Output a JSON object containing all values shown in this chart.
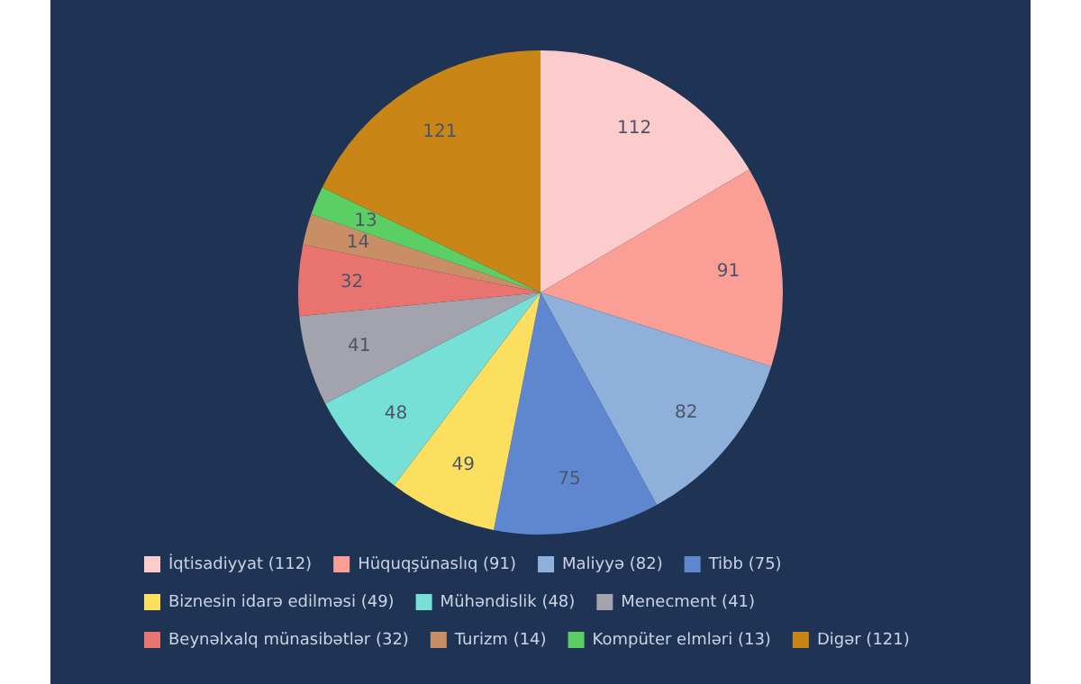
{
  "chart_data": {
    "type": "pie",
    "categories": [
      "İqtisadiyyat (112)",
      "Hüquqşünaslıq (91)",
      "Maliyyə (82)",
      "Tibb (75)",
      "Biznesin idarə edilməsi (49)",
      "Mühəndislik (48)",
      "Menecment (41)",
      "Beynəlxalq münasibətlər (32)",
      "Turizm (14)",
      "Kompüter elmləri (13)",
      "Digər (121)"
    ],
    "values": [
      112,
      91,
      82,
      75,
      49,
      48,
      41,
      32,
      14,
      13,
      121
    ],
    "colors": [
      "#fccbcb",
      "#fa9e96",
      "#8fb0da",
      "#5f87cf",
      "#fddf60",
      "#76dfd6",
      "#a2a3ad",
      "#e8736f",
      "#c98e66",
      "#5bcf63",
      "#c98516"
    ],
    "data_labels": true,
    "legend": "bottom"
  }
}
